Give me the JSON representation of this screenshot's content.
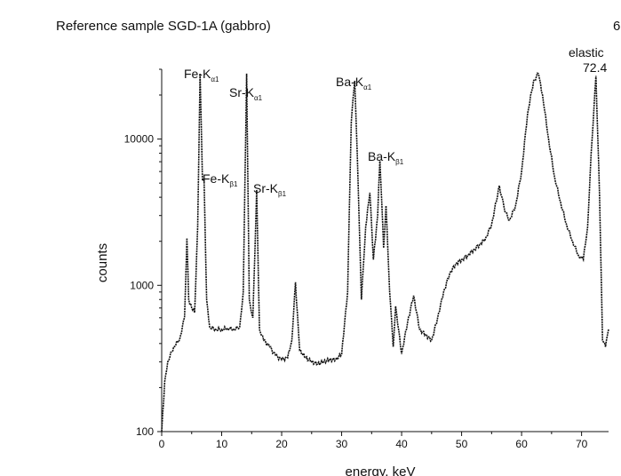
{
  "chart_data": {
    "type": "line",
    "title": "Reference sample SGD-1A (gabbro)",
    "title_right": "6",
    "xlabel": "energy, keV",
    "ylabel": "counts",
    "xlim": [
      0,
      74.5
    ],
    "ylim": [
      100,
      30000
    ],
    "y_scale": "log",
    "x_ticks": [
      0,
      10,
      20,
      30,
      40,
      50,
      60,
      70
    ],
    "y_ticks": [
      100,
      1000,
      10000
    ],
    "grid": false,
    "legend": "none",
    "line_color": "#111111",
    "annotations": [
      {
        "label": "Fe-K",
        "sub": "α1",
        "x": 6.4
      },
      {
        "label": "Fe-K",
        "sub": "β1",
        "x": 7.06
      },
      {
        "label": "Sr-K",
        "sub": "α1",
        "x": 14.16
      },
      {
        "label": "Sr-K",
        "sub": "β1",
        "x": 15.84
      },
      {
        "label": "Ba-K",
        "sub": "α1",
        "x": 32.19
      },
      {
        "label": "Ba-K",
        "sub": "β1",
        "x": 36.38
      },
      {
        "label": "elastic",
        "value": "72.4",
        "x": 72.4
      }
    ],
    "series": [
      {
        "x": [
          0,
          0.5,
          1,
          2,
          3,
          3.8,
          4.2,
          4.5,
          5,
          5.5,
          6,
          6.4,
          6.8,
          7.06,
          7.5,
          8,
          9,
          10,
          11,
          12,
          13,
          13.6,
          14.16,
          14.6,
          15.2,
          15.84,
          16.3,
          17,
          18,
          19,
          20,
          21,
          21.7,
          22.3,
          23,
          24,
          25,
          26,
          27,
          28,
          29,
          30,
          31,
          31.6,
          32.19,
          32.6,
          33.3,
          34,
          34.7,
          35.3,
          36,
          36.38,
          37,
          37.4,
          38,
          38.6,
          39,
          40,
          41,
          42,
          43,
          44,
          45,
          46,
          47,
          48,
          49,
          50,
          51,
          52,
          53,
          54,
          55,
          56.3,
          57.2,
          58,
          59,
          60,
          61,
          62,
          62.8,
          63.5,
          64.5,
          65.5,
          66.5,
          67.5,
          68.5,
          69.5,
          70.3,
          71,
          71.6,
          72.4,
          73,
          73.5,
          74,
          74.5
        ],
        "y": [
          100,
          220,
          300,
          380,
          430,
          600,
          2100,
          800,
          700,
          650,
          2500,
          28000,
          5200,
          5300,
          800,
          520,
          500,
          500,
          510,
          500,
          520,
          900,
          28000,
          800,
          600,
          4500,
          500,
          420,
          380,
          330,
          310,
          320,
          420,
          1050,
          360,
          320,
          300,
          290,
          300,
          310,
          310,
          340,
          900,
          13000,
          25000,
          8000,
          800,
          2500,
          4300,
          1500,
          3000,
          7200,
          1800,
          3500,
          900,
          380,
          720,
          340,
          560,
          850,
          500,
          460,
          420,
          600,
          900,
          1200,
          1400,
          1500,
          1600,
          1750,
          1900,
          2100,
          2600,
          4800,
          3200,
          2800,
          3500,
          6000,
          15000,
          25000,
          28000,
          20000,
          10000,
          5500,
          3700,
          2600,
          2000,
          1600,
          1500,
          2500,
          8000,
          27000,
          4000,
          420,
          380,
          500
        ]
      }
    ]
  }
}
